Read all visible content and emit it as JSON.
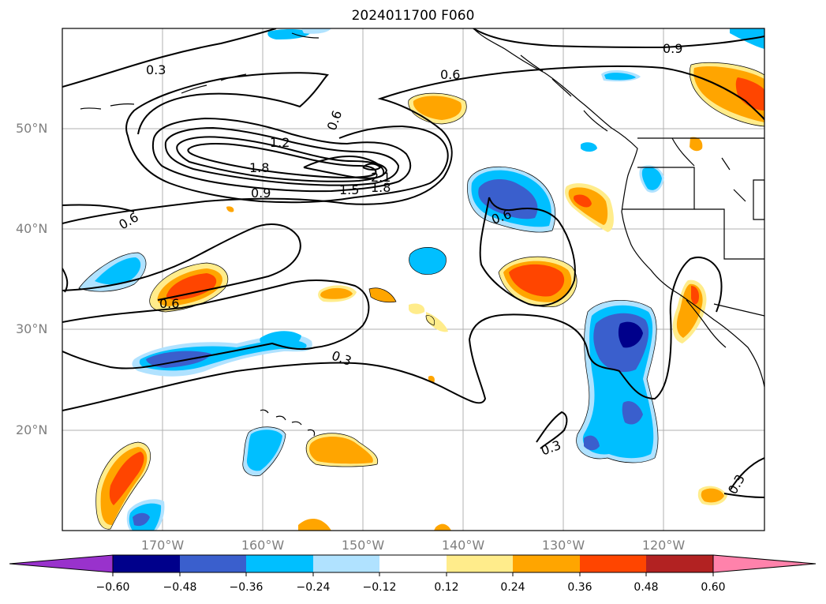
{
  "title": "2024011700 F060",
  "lat_labels": [
    "50°N",
    "40°N",
    "30°N",
    "20°N"
  ],
  "lon_labels": [
    "170°W",
    "160°W",
    "150°W",
    "140°W",
    "130°W",
    "120°W"
  ],
  "contour_labels": [
    "0.3",
    "0.6",
    "0.9",
    "1.2",
    "1.8",
    "0.9",
    "1.5",
    "2.1",
    "1.8",
    "0.6",
    "0.6",
    "0.6",
    "0.6",
    "0.3",
    "0.3",
    "0.3"
  ],
  "colorbar": {
    "ticks": [
      "−0.60",
      "−0.48",
      "−0.36",
      "−0.24",
      "−0.12",
      "0.12",
      "0.24",
      "0.36",
      "0.48",
      "0.60"
    ],
    "colors": [
      "#9932cc",
      "#00008b",
      "#3a5fcd",
      "#00bfff",
      "#b0e2ff",
      "#ffffff",
      "#ffec8b",
      "#ffa500",
      "#ff4500",
      "#b22222",
      "#ff82ab"
    ]
  },
  "colors": {
    "contour": "#000000",
    "gridline": "#b0b0b0",
    "tick_label": "#7f7f7f"
  }
}
